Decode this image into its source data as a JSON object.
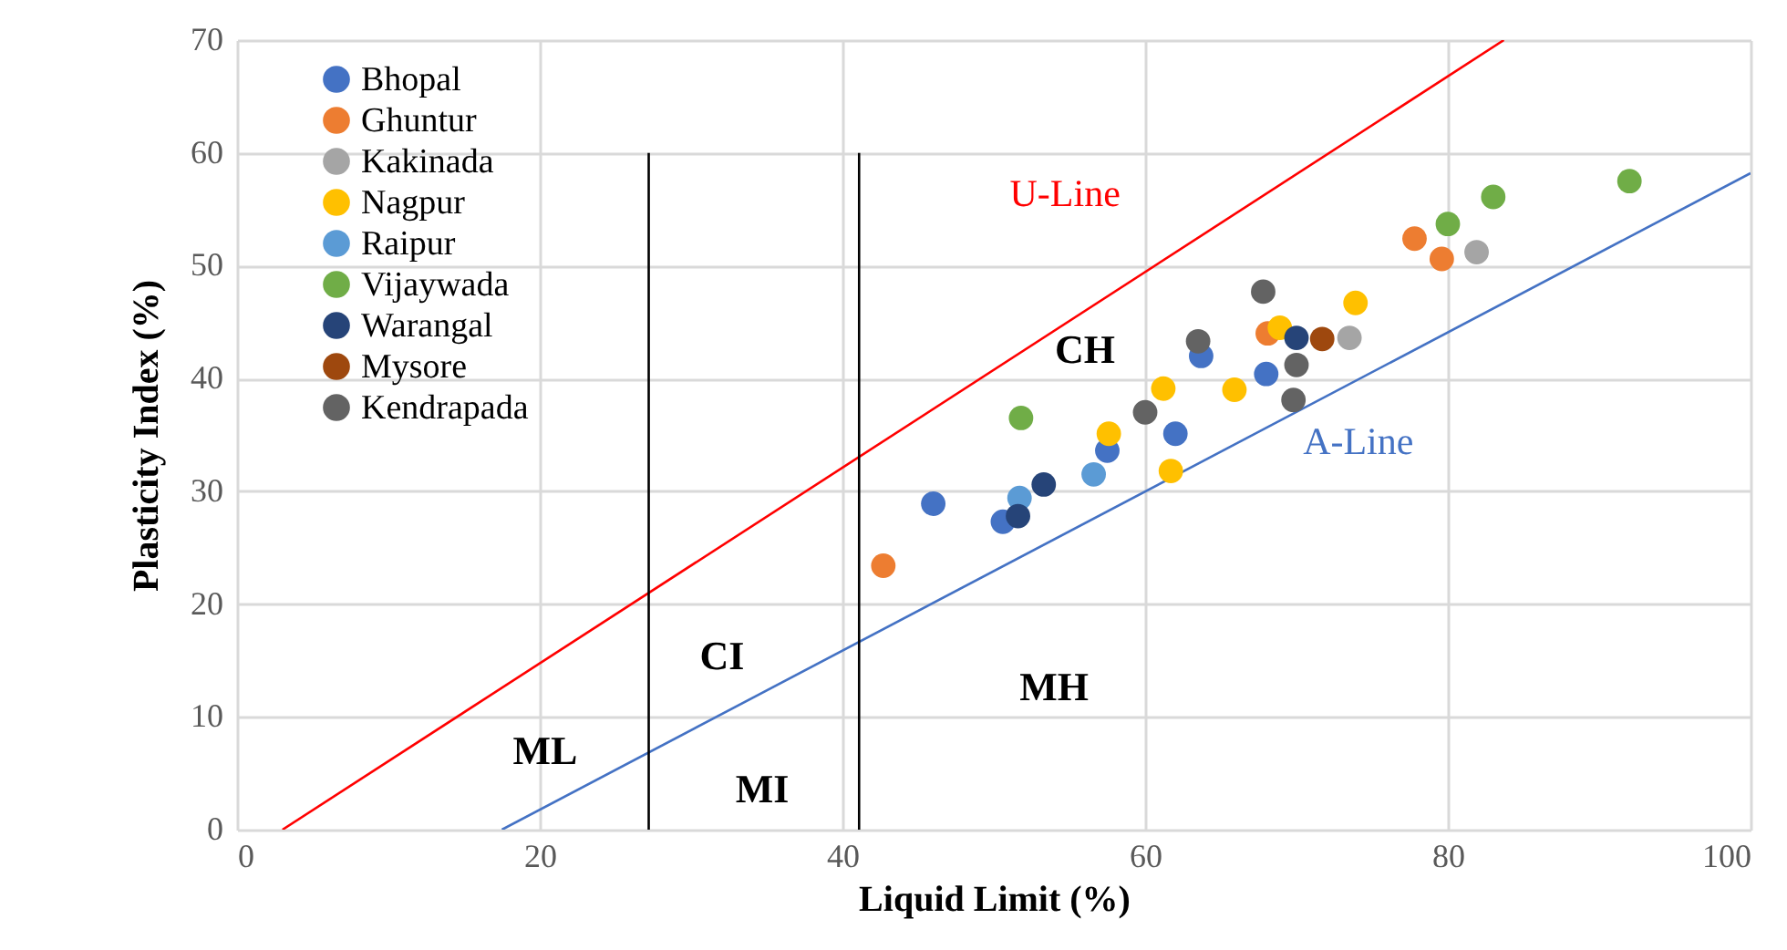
{
  "chart_data": {
    "type": "scatter",
    "xlabel": "Liquid Limit (%)",
    "ylabel": "Plasticity Index (%)",
    "xlim": [
      0,
      100
    ],
    "xticks": [
      0,
      20,
      40,
      60,
      80,
      100
    ],
    "ylim": [
      0,
      70
    ],
    "yticks": [
      0,
      10,
      20,
      30,
      40,
      50,
      60,
      70
    ],
    "grid": true,
    "legend": "top left",
    "marker": "circle",
    "series": [
      {
        "name": "Bhopal",
        "color": "#4472c4",
        "x": [
          46.0,
          50.6,
          57.5,
          62.0,
          63.7,
          68.0
        ],
        "values": [
          28.9,
          27.3,
          33.6,
          35.1,
          42.0,
          40.4
        ]
      },
      {
        "name": "Ghuntur",
        "color": "#ed7d31",
        "x": [
          42.7,
          68.1,
          77.8,
          79.6
        ],
        "values": [
          23.4,
          44.0,
          52.4,
          50.6
        ]
      },
      {
        "name": "Kakinada",
        "color": "#a5a5a5",
        "x": [
          81.9,
          73.5
        ],
        "values": [
          51.2,
          43.6
        ]
      },
      {
        "name": "Nagpur",
        "color": "#ffc000",
        "x": [
          57.6,
          61.2,
          61.7,
          65.9,
          68.9,
          73.9
        ],
        "values": [
          35.1,
          39.1,
          31.8,
          39.0,
          44.5,
          46.7
        ]
      },
      {
        "name": "Raipur",
        "color": "#5b9bd5",
        "x": [
          51.7,
          56.6
        ],
        "values": [
          29.4,
          31.5
        ]
      },
      {
        "name": "Vijaywada",
        "color": "#70ad47",
        "x": [
          51.8,
          80.0,
          83.0,
          92.0
        ],
        "values": [
          36.5,
          53.7,
          56.1,
          57.5
        ]
      },
      {
        "name": "Warangal",
        "color": "#264478",
        "x": [
          51.6,
          53.3,
          70.0
        ],
        "values": [
          27.8,
          30.6,
          43.6
        ]
      },
      {
        "name": "Mysore",
        "color": "#9e480e",
        "x": [
          71.7
        ],
        "values": [
          43.5
        ]
      },
      {
        "name": "Kendrapada",
        "color": "#636363",
        "x": [
          67.8,
          63.5,
          60.0,
          70.0,
          69.8
        ],
        "values": [
          47.7,
          43.3,
          37.0,
          41.2,
          38.1
        ]
      },
      {
        "type": "line",
        "marker": "none",
        "name": "U-Line",
        "color": "#ff0000",
        "x": [
          3.0,
          83.7
        ],
        "values": [
          0,
          70
        ]
      },
      {
        "type": "line",
        "marker": "none",
        "name": "A-Line",
        "color": "#4472c4",
        "x": [
          17.5,
          100
        ],
        "values": [
          0,
          58.2
        ]
      },
      {
        "type": "line",
        "marker": "none",
        "color": "#000000",
        "x": [
          27.2,
          27.2
        ],
        "values": [
          0,
          60
        ]
      },
      {
        "type": "line",
        "marker": "none",
        "color": "#000000",
        "x": [
          41.1,
          41.1
        ],
        "values": [
          0,
          60
        ]
      }
    ],
    "annotations": [
      "CH",
      "CI",
      "MH",
      "ML",
      "MI"
    ]
  }
}
